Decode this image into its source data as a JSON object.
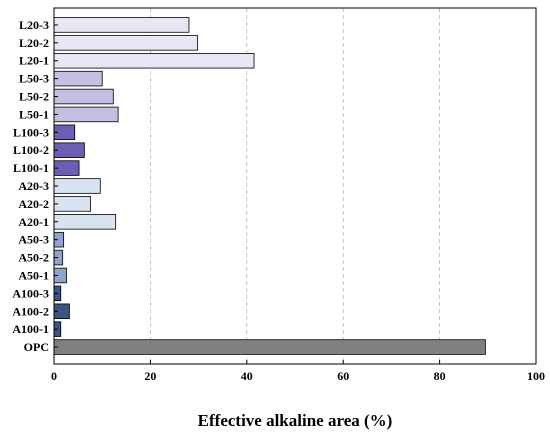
{
  "chart_data": {
    "type": "bar",
    "orientation": "horizontal",
    "xlabel": "Effective alkaline area (%)",
    "ylabel": "",
    "title": "",
    "xlim": [
      0,
      100
    ],
    "xticks": [
      "0",
      "20",
      "40",
      "60",
      "80",
      "100"
    ],
    "grid": true,
    "categories": [
      "L20-3",
      "L20-2",
      "L20-1",
      "L50-3",
      "L50-2",
      "L50-1",
      "L100-3",
      "L100-2",
      "L100-1",
      "A20-3",
      "A20-2",
      "A20-1",
      "A50-3",
      "A50-2",
      "A50-1",
      "A100-3",
      "A100-2",
      "A100-1",
      "OPC"
    ],
    "values": [
      28.0,
      29.8,
      41.5,
      10.0,
      12.3,
      13.3,
      4.3,
      6.3,
      5.2,
      9.6,
      7.6,
      12.8,
      2.0,
      1.8,
      2.6,
      1.4,
      3.2,
      1.4,
      89.5
    ],
    "colors": [
      "#e6e6f4",
      "#e6e6f4",
      "#e6e6f4",
      "#c3bfe0",
      "#c3bfe0",
      "#c3bfe0",
      "#6a5fb3",
      "#6a5fb3",
      "#6a5fb3",
      "#d8e3f2",
      "#d8e3f2",
      "#d8e3f2",
      "#8ea4cc",
      "#8ea4cc",
      "#8ea4cc",
      "#3b5480",
      "#3b5480",
      "#3b5480",
      "#808080"
    ]
  }
}
